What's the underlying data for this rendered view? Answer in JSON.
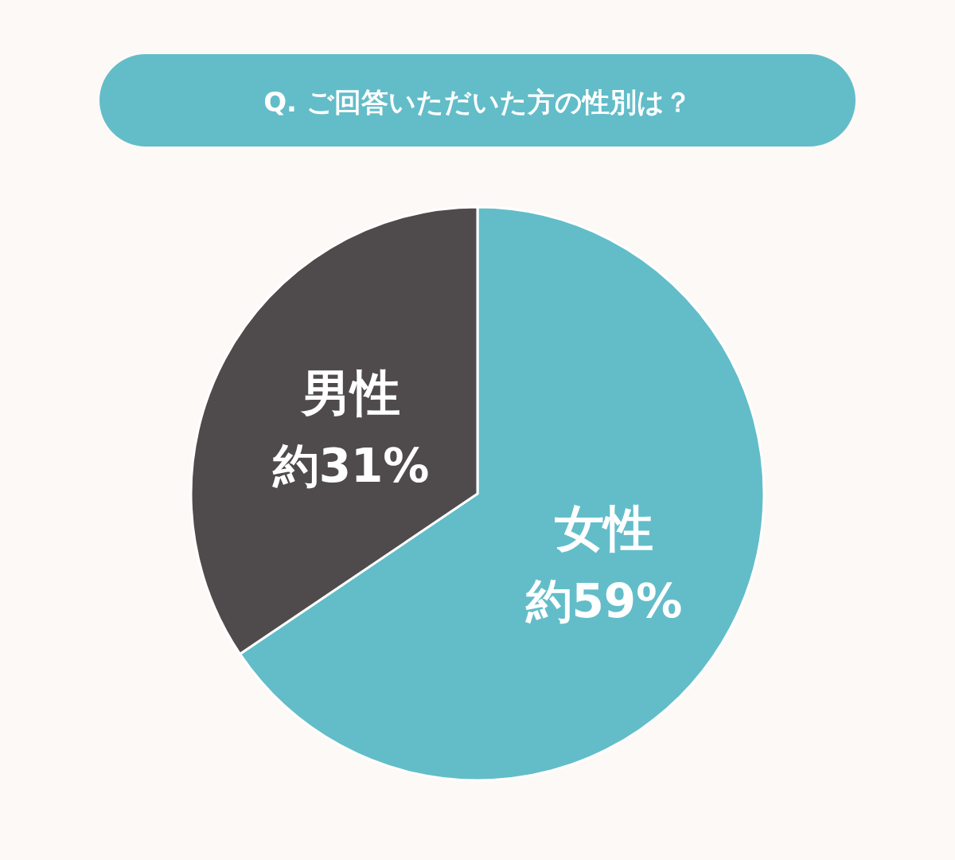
{
  "chart_data": {
    "type": "pie",
    "title": "Q. ご回答いただいた方の性別は？",
    "categories": [
      "女性",
      "男性"
    ],
    "values": [
      59,
      31
    ],
    "colors": [
      "#62bdc9",
      "#4f4b4c"
    ],
    "value_labels": [
      "約59%",
      "約31%"
    ]
  }
}
